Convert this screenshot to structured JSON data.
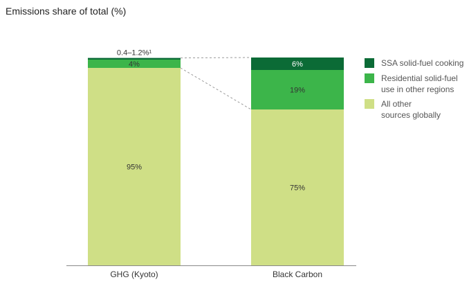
{
  "chart_data": {
    "type": "bar",
    "stacked": true,
    "title": "Emissions share of total (%)",
    "categories": [
      "GHG (Kyoto)",
      "Black Carbon"
    ],
    "ylim": [
      0,
      100
    ],
    "series": [
      {
        "name": "All other sources globally",
        "values": [
          95,
          75
        ],
        "labels": [
          "95%",
          "75%"
        ],
        "color": "#cfdf86"
      },
      {
        "name": "Residential solid-fuel use in other regions",
        "values": [
          4,
          19
        ],
        "labels": [
          "4%",
          "19%"
        ],
        "color": "#3cb54a"
      },
      {
        "name": "SSA solid-fuel cooking",
        "values": [
          0.8,
          6
        ],
        "labels": [
          "0.4–1.2%¹",
          "6%"
        ],
        "color": "#0b6b36"
      }
    ],
    "legend_lines": [
      [
        "SSA solid-fuel cooking"
      ],
      [
        "Residential solid-fuel",
        "use in other regions"
      ],
      [
        "All other",
        "sources globally"
      ]
    ],
    "legend_position": "right",
    "grid": false
  }
}
